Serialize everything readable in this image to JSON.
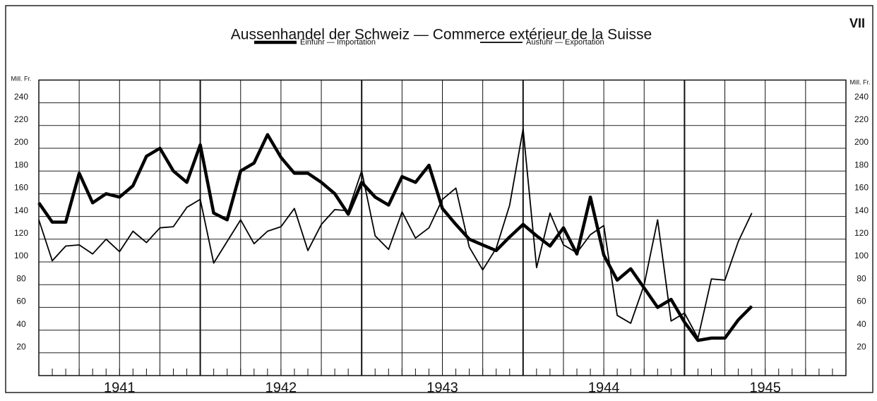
{
  "chart_data": {
    "type": "line",
    "title": "Aussenhandel der Schweiz — Commerce extérieur de la Suisse",
    "plate": "VII",
    "unit": "Mill. Fr.",
    "years": [
      "1941",
      "1942",
      "1943",
      "1944",
      "1945"
    ],
    "categories": [
      null,
      null,
      null,
      null,
      null,
      null,
      null,
      null,
      null,
      null,
      null,
      null,
      null,
      null,
      null,
      null,
      null,
      null,
      null,
      null,
      null,
      null,
      null,
      null,
      null,
      null,
      null,
      null,
      null,
      null,
      null,
      null,
      null,
      null,
      null,
      null,
      null,
      null,
      null,
      null,
      null,
      null,
      null,
      null,
      null,
      null,
      null,
      null,
      null,
      null,
      null,
      null,
      null,
      null,
      null,
      null,
      null,
      null,
      null,
      null
    ],
    "series": [
      {
        "name": "Einfuhr — Importation",
        "color": "#000000",
        "width": 4.5,
        "values": [
          152,
          135,
          135,
          178,
          152,
          160,
          157,
          167,
          193,
          200,
          180,
          170,
          203,
          143,
          137,
          180,
          187,
          212,
          192,
          178,
          178,
          170,
          160,
          142,
          170,
          157,
          150,
          175,
          170,
          185,
          147,
          133,
          120,
          115,
          110,
          122,
          133,
          123,
          114,
          130,
          107,
          157,
          106,
          84,
          94,
          77,
          60,
          67,
          47,
          31,
          33,
          33,
          49,
          61,
          null,
          null,
          null,
          null,
          null,
          null
        ]
      },
      {
        "name": "Ausfuhr — Exportation",
        "color": "#000000",
        "width": 1.8,
        "values": [
          137,
          101,
          114,
          115,
          107,
          120,
          109,
          127,
          117,
          130,
          131,
          148,
          155,
          99,
          118,
          137,
          116,
          127,
          131,
          147,
          110,
          133,
          146,
          145,
          180,
          123,
          111,
          144,
          121,
          130,
          155,
          165,
          113,
          93,
          112,
          150,
          217,
          95,
          143,
          115,
          108,
          124,
          132,
          53,
          46,
          80,
          137,
          48,
          55,
          33,
          85,
          84,
          118,
          143,
          null,
          null,
          null,
          null,
          null,
          null
        ]
      }
    ],
    "ylim": [
      0,
      260
    ],
    "yticks": [
      20,
      40,
      60,
      80,
      100,
      120,
      140,
      160,
      180,
      200,
      220,
      240
    ],
    "grid": true
  }
}
